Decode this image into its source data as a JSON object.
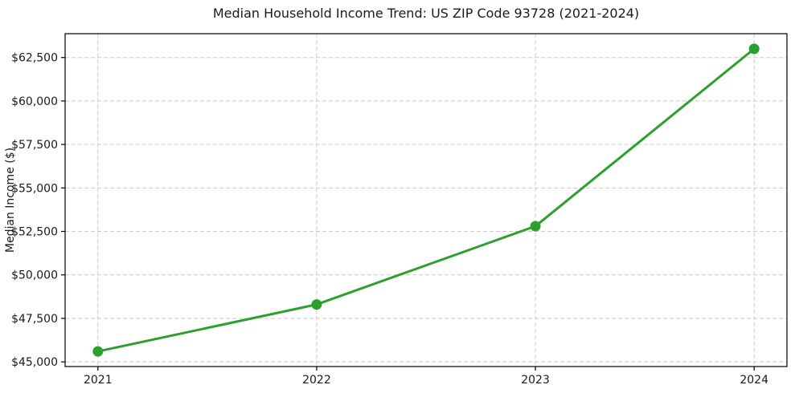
{
  "chart_data": {
    "type": "line",
    "title": "Median Household Income Trend: US ZIP Code 93728 (2021-2024)",
    "xlabel": "",
    "ylabel": "Median Income ($)",
    "x": [
      2021,
      2022,
      2023,
      2024
    ],
    "categories": [
      "2021",
      "2022",
      "2023",
      "2024"
    ],
    "series": [
      {
        "name": "Median Household Income",
        "values": [
          45600,
          48300,
          52800,
          63000
        ]
      }
    ],
    "xlim": [
      2020.85,
      2024.15
    ],
    "ylim": [
      44730,
      63870
    ],
    "xticks": [
      2021,
      2022,
      2023,
      2024
    ],
    "xtick_labels": [
      "2021",
      "2022",
      "2023",
      "2024"
    ],
    "yticks": [
      45000,
      47500,
      50000,
      52500,
      55000,
      57500,
      60000,
      62500
    ],
    "ytick_labels": [
      "$45,000",
      "$47,500",
      "$50,000",
      "$52,500",
      "$55,000",
      "$57,500",
      "$60,000",
      "$62,500"
    ],
    "grid": true,
    "grid_style": "dashed",
    "legend": false,
    "line_color": "#2ca02c",
    "marker_color": "#2ca02c",
    "line_width": 3,
    "marker_radius": 6.5,
    "grid_color": "#c9c9c9",
    "background_color": "#ffffff",
    "text_color": "#1a1a1a"
  }
}
